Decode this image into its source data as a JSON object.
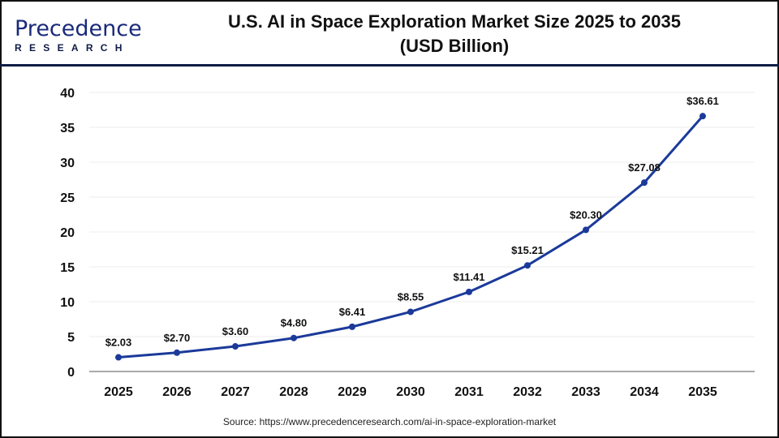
{
  "logo": {
    "main": "Precedence",
    "sub": "RESEARCH"
  },
  "title_line1": "U.S. AI in Space Exploration Market Size 2025 to 2035",
  "title_line2": "(USD Billion)",
  "source": "Source: https://www.precedenceresearch.com/ai-in-space-exploration-market",
  "chart_data": {
    "type": "line",
    "title": "U.S. AI in Space Exploration Market Size 2025 to 2035 (USD Billion)",
    "categories": [
      "2025",
      "2026",
      "2027",
      "2028",
      "2029",
      "2030",
      "2031",
      "2032",
      "2033",
      "2034",
      "2035"
    ],
    "values": [
      2.03,
      2.7,
      3.6,
      4.8,
      6.41,
      8.55,
      11.41,
      15.21,
      20.3,
      27.08,
      36.61
    ],
    "data_labels": [
      "$2.03",
      "$2.70",
      "$3.60",
      "$4.80",
      "$6.41",
      "$8.55",
      "$11.41",
      "$15.21",
      "$20.30",
      "$27.08",
      "$36.61"
    ],
    "ylim": [
      0,
      40
    ],
    "yticks": [
      0,
      5,
      10,
      15,
      20,
      25,
      30,
      35,
      40
    ],
    "grid": true,
    "line_color": "#1b3a9a",
    "xlabel": "",
    "ylabel": ""
  }
}
